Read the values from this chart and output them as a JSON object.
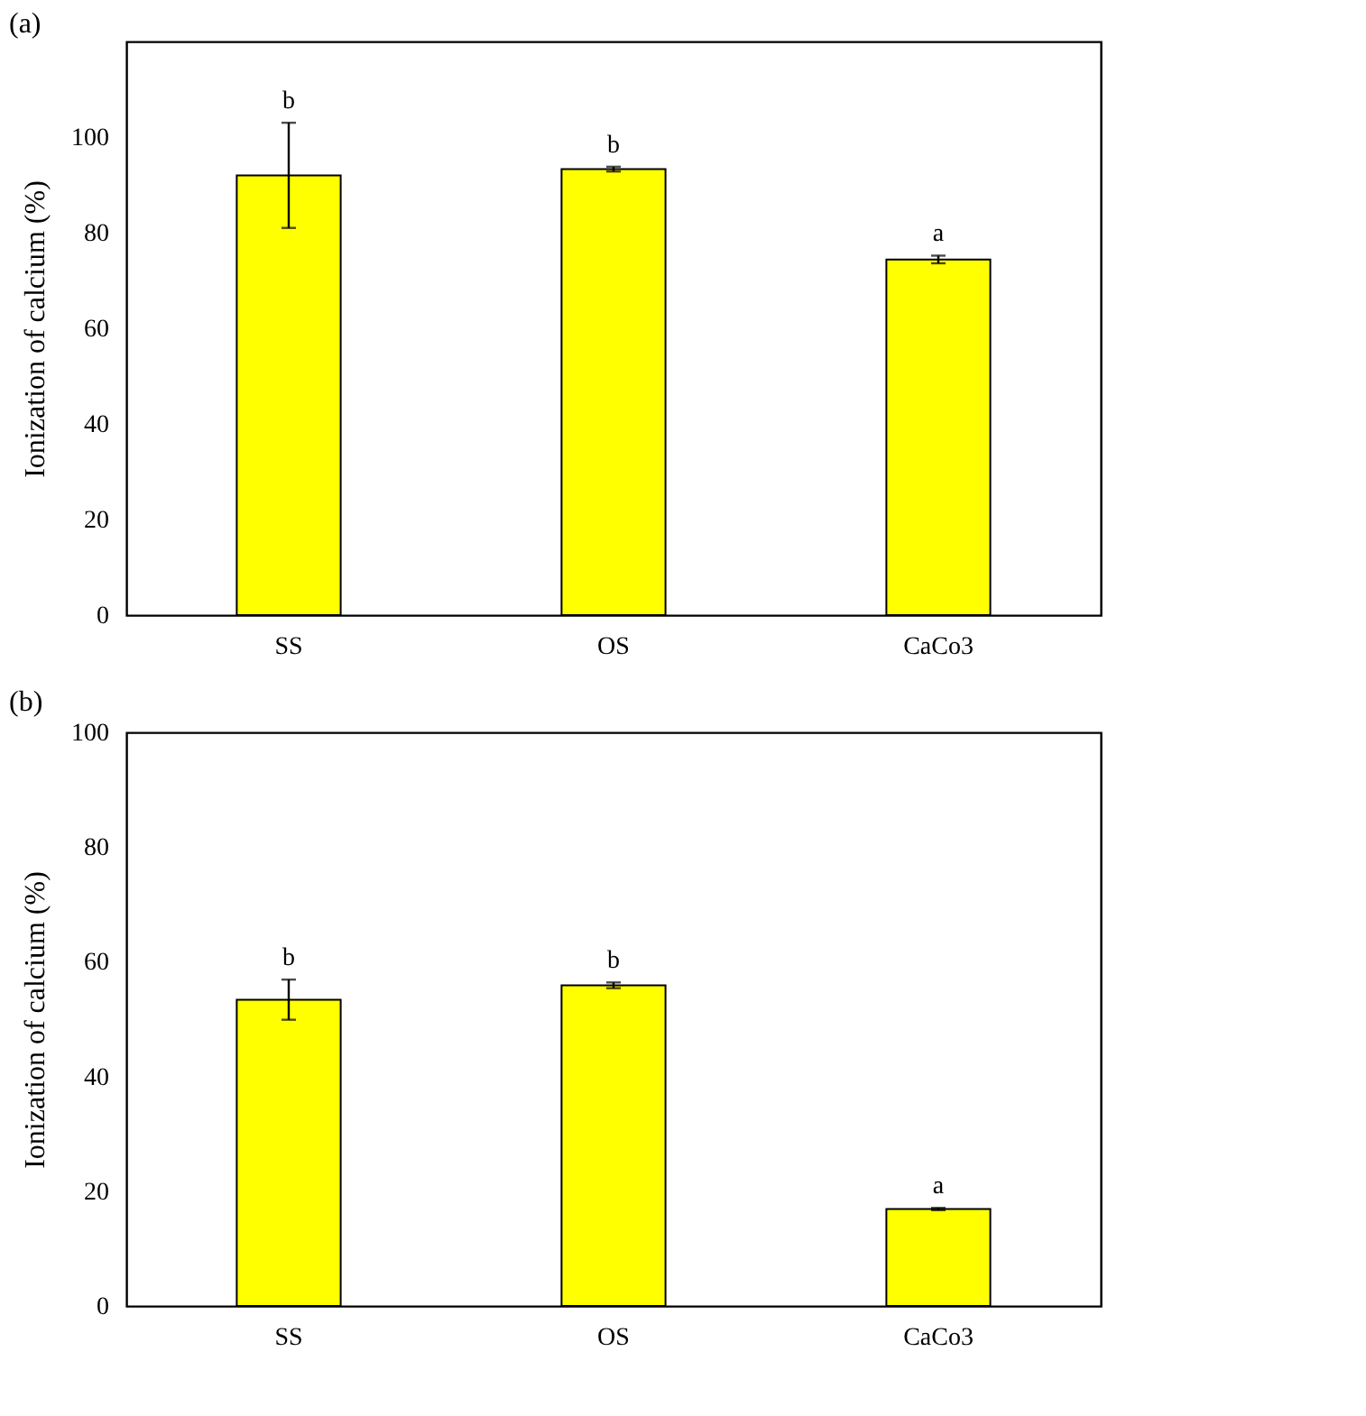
{
  "chart_data": [
    {
      "type": "bar",
      "title": "(a)",
      "ylabel": "Ionization of calcium (%)",
      "categories": [
        "SS",
        "OS",
        "CaCo3"
      ],
      "values": [
        92,
        93.3,
        74.4
      ],
      "errors": [
        11,
        0.5,
        0.8
      ],
      "color": "#ffff00",
      "ylim": [
        0,
        120
      ],
      "yticks": [
        0,
        20,
        40,
        60,
        80,
        100
      ],
      "annotations": [
        "b",
        "b",
        "a"
      ]
    },
    {
      "type": "bar",
      "title": "(b)",
      "ylabel": "Ionization of calcium (%)",
      "categories": [
        "SS",
        "OS",
        "CaCo3"
      ],
      "values": [
        53.4,
        55.9,
        16.9
      ],
      "errors": [
        3.5,
        0.5,
        0.2
      ],
      "color": "#ffff00",
      "ylim": [
        0,
        100
      ],
      "yticks": [
        0,
        20,
        40,
        60,
        80,
        100
      ],
      "annotations": [
        "b",
        "b",
        "a"
      ]
    }
  ]
}
